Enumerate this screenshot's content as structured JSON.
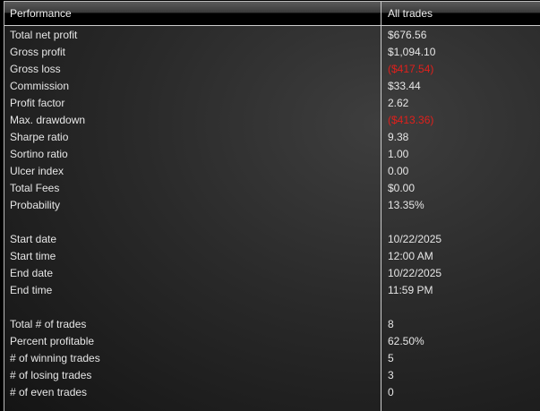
{
  "header": {
    "col1": "Performance",
    "col2": "All trades"
  },
  "colors": {
    "negative": "#e0201c"
  },
  "rows": [
    {
      "label": "Total net profit",
      "value": "$676.56"
    },
    {
      "label": "Gross profit",
      "value": "$1,094.10"
    },
    {
      "label": "Gross loss",
      "value": "($417.54)",
      "negative": true
    },
    {
      "label": "Commission",
      "value": "$33.44"
    },
    {
      "label": "Profit factor",
      "value": "2.62"
    },
    {
      "label": "Max. drawdown",
      "value": "($413.36)",
      "negative": true
    },
    {
      "label": "Sharpe ratio",
      "value": "9.38"
    },
    {
      "label": "Sortino ratio",
      "value": "1.00"
    },
    {
      "label": "Ulcer index",
      "value": "0.00"
    },
    {
      "label": "Total Fees",
      "value": "$0.00"
    },
    {
      "label": "Probability",
      "value": "13.35%"
    },
    {
      "label": "",
      "value": ""
    },
    {
      "label": "Start date",
      "value": "10/22/2025"
    },
    {
      "label": "Start time",
      "value": "12:00 AM"
    },
    {
      "label": "End date",
      "value": "10/22/2025"
    },
    {
      "label": "End time",
      "value": "11:59 PM"
    },
    {
      "label": "",
      "value": ""
    },
    {
      "label": "Total # of trades",
      "value": "8"
    },
    {
      "label": "Percent profitable",
      "value": "62.50%"
    },
    {
      "label": "# of winning trades",
      "value": "5"
    },
    {
      "label": "# of losing trades",
      "value": "3"
    },
    {
      "label": "# of even trades",
      "value": "0"
    }
  ]
}
